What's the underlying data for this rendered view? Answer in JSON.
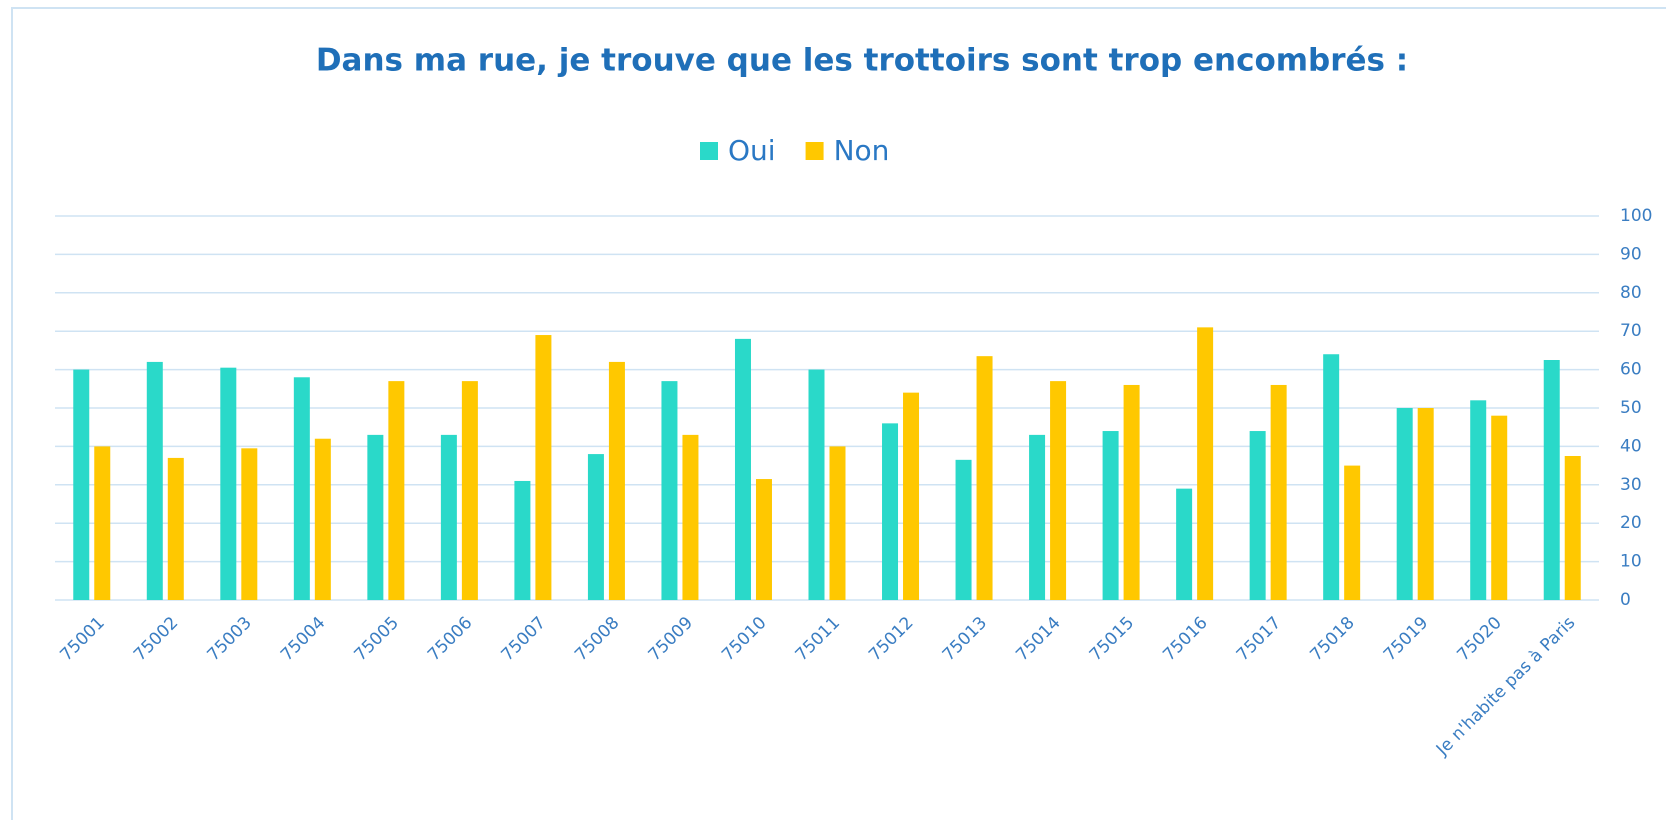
{
  "chart_data": {
    "type": "bar",
    "title": "Dans ma rue, je trouve que les trottoirs sont trop encombrés :",
    "categories": [
      "75001",
      "75002",
      "75003",
      "75004",
      "75005",
      "75006",
      "75007",
      "75008",
      "75009",
      "75010",
      "75011",
      "75012",
      "75013",
      "75014",
      "75015",
      "75016",
      "75017",
      "75018",
      "75019",
      "75020",
      "Je n'habite pas à Paris"
    ],
    "series": [
      {
        "name": "Oui",
        "color": "#2ad9c9",
        "values": [
          60,
          62,
          60.5,
          58,
          43,
          43,
          31,
          38,
          57,
          68,
          60,
          46,
          36.5,
          43,
          44,
          29,
          44,
          64,
          50,
          52,
          62.5
        ]
      },
      {
        "name": "Non",
        "color": "#ffc800",
        "values": [
          40,
          37,
          39.5,
          42,
          57,
          57,
          69,
          62,
          43,
          31.5,
          40,
          54,
          63.5,
          57,
          56,
          71,
          56,
          35,
          50,
          48,
          37.5
        ]
      }
    ],
    "ylim": [
      0,
      100
    ],
    "yticks": [
      0,
      10,
      20,
      30,
      40,
      50,
      60,
      70,
      80,
      90,
      100
    ],
    "grid": true,
    "legend": "top"
  }
}
